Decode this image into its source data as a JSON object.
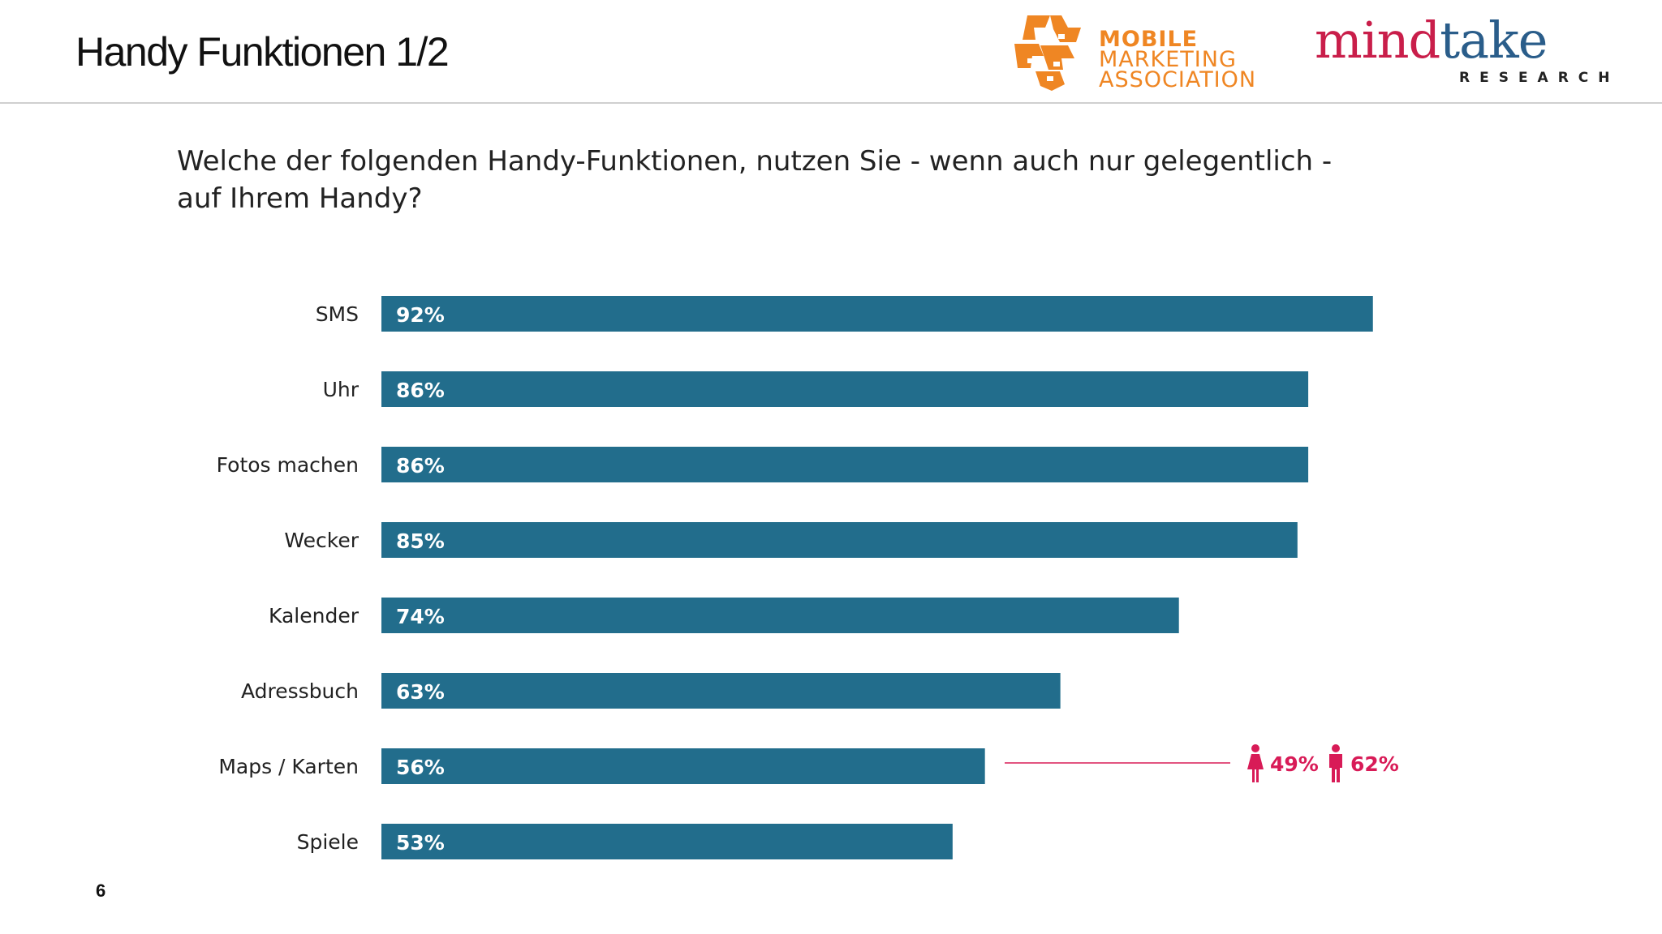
{
  "slide": {
    "title": "Handy Funktionen 1/2",
    "page_number": "6"
  },
  "logos": {
    "mma": {
      "line1": "MOBILE",
      "line2": "MARKETING",
      "line3": "ASSOCIATION",
      "color": "#ef8623"
    },
    "mindtake": {
      "word_part1": "mind",
      "word_part2": "take",
      "subtitle": "RESEARCH",
      "color1": "#c91e4a",
      "color2": "#2a5d8a"
    }
  },
  "question": {
    "line1": "Welche der folgenden Handy-Funktionen, nutzen Sie - wenn auch nur gelegentlich -",
    "line2": "auf Ihrem Handy?"
  },
  "chart_data": {
    "type": "bar",
    "orientation": "horizontal",
    "title": "",
    "categories": [
      "SMS",
      "Uhr",
      "Fotos machen",
      "Wecker",
      "Kalender",
      "Adressbuch",
      "Maps / Karten",
      "Spiele"
    ],
    "values": [
      92,
      86,
      86,
      85,
      74,
      63,
      56,
      53
    ],
    "value_labels": [
      "92%",
      "86%",
      "86%",
      "85%",
      "74%",
      "63%",
      "56%",
      "53%"
    ],
    "unit": "%",
    "xlim": [
      0,
      100
    ],
    "grid": false,
    "bar_color": "#226d8c",
    "annotations": [
      {
        "category": "Maps / Karten",
        "female_label": "49%",
        "male_label": "62%",
        "female_icon": "female-icon",
        "male_icon": "male-icon",
        "color": "#d81b57"
      }
    ]
  }
}
